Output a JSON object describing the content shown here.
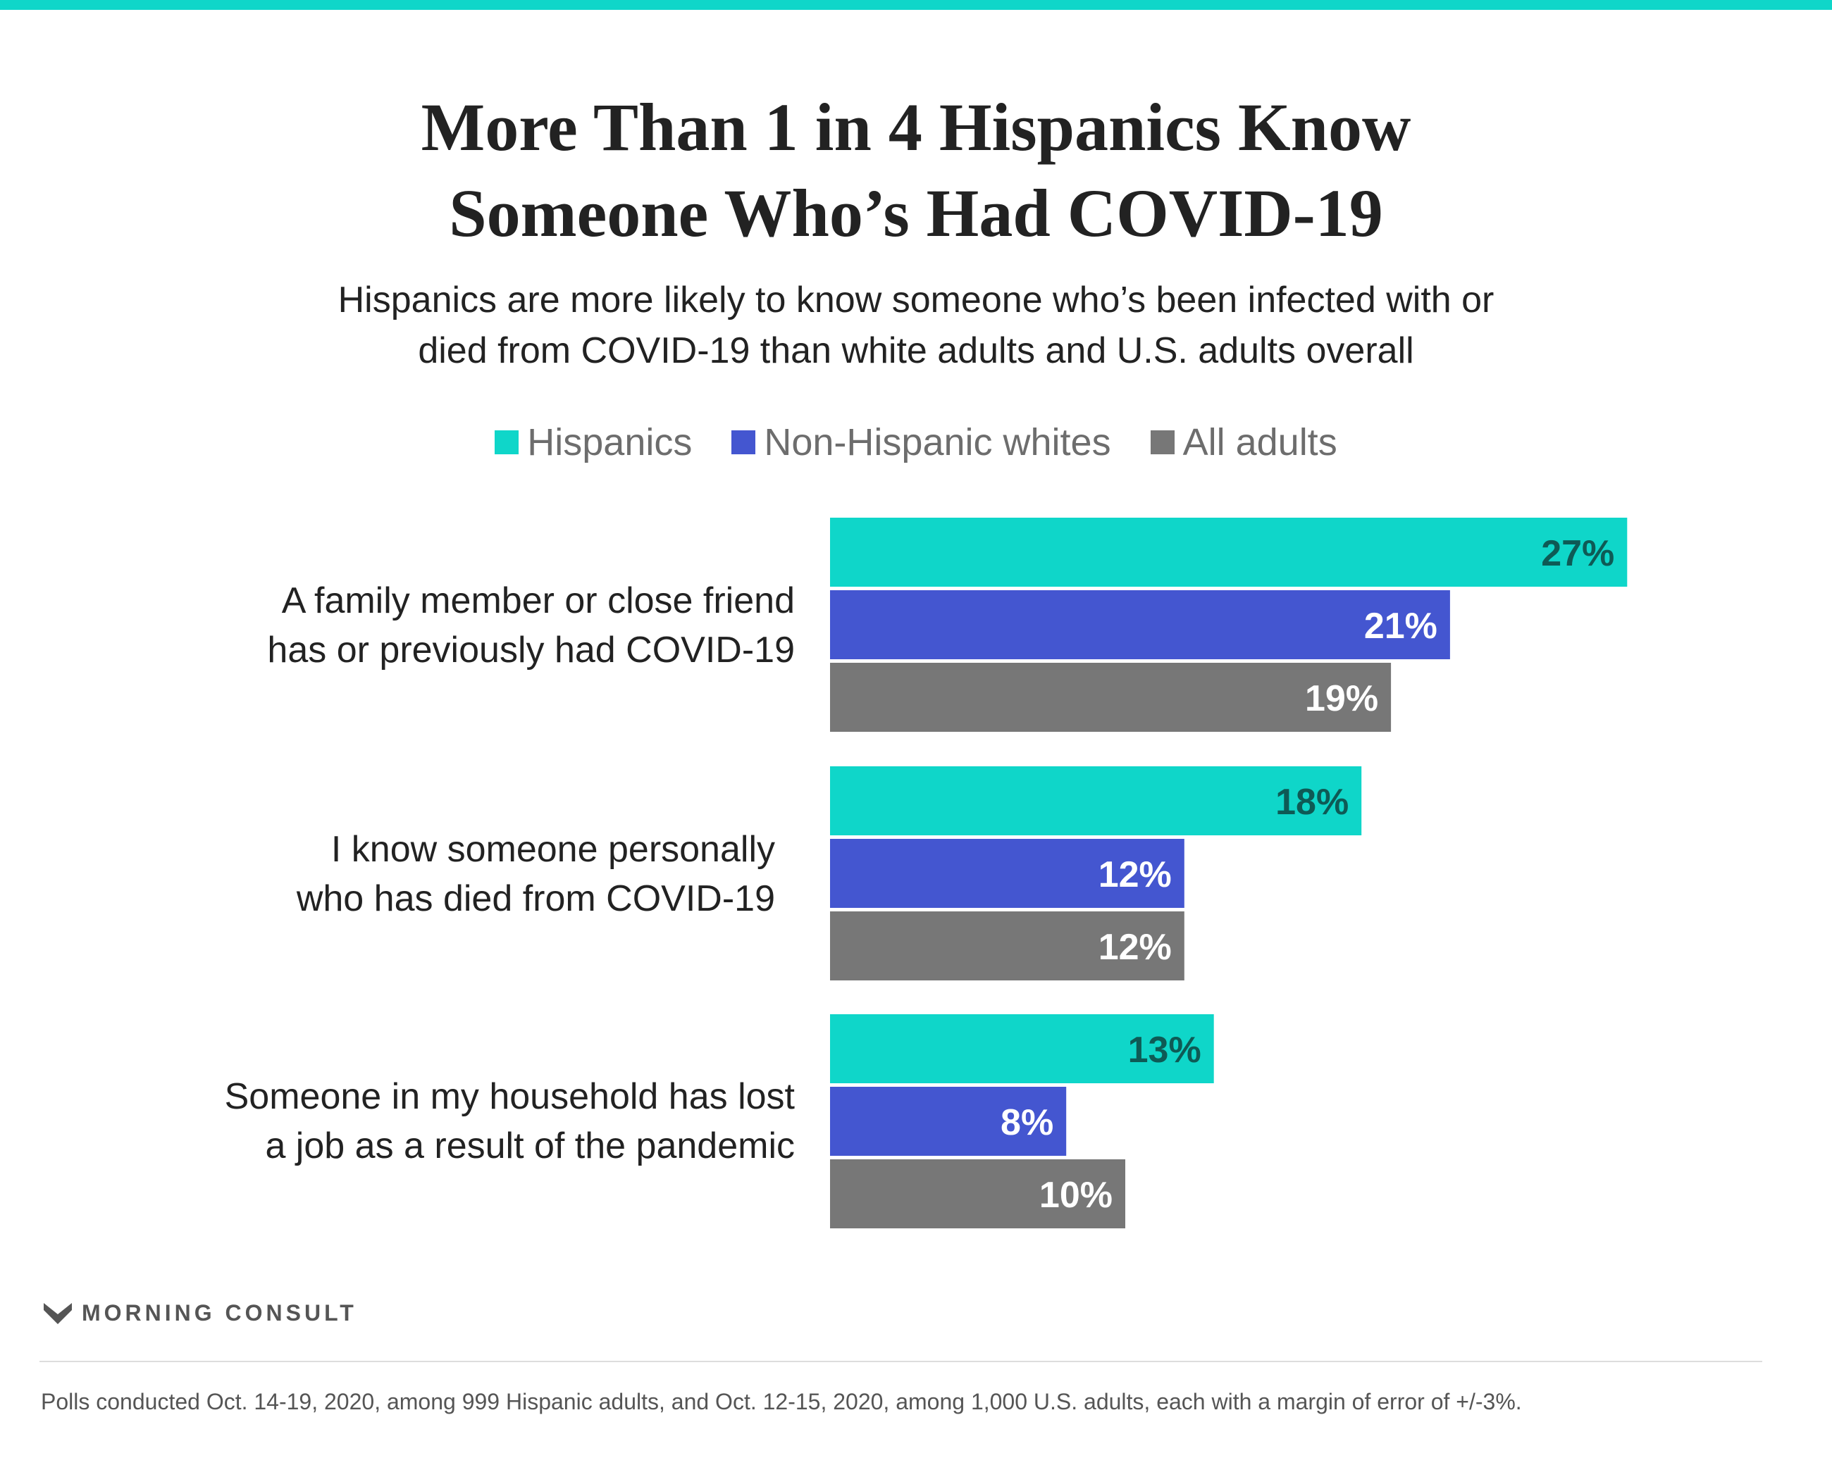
{
  "title": {
    "line1": "More Than 1 in 4 Hispanics Know",
    "line2": "Someone Who’s Had COVID-19"
  },
  "subtitle": {
    "line1": "Hispanics are more likely to know someone who’s been infected with or",
    "line2": "died from COVID-19 than white adults and U.S. adults overall"
  },
  "legend": [
    {
      "label": "Hispanics",
      "color": "#0fd6c9"
    },
    {
      "label": "Non-Hispanic whites",
      "color": "#4456d0"
    },
    {
      "label": "All adults",
      "color": "#777777"
    }
  ],
  "chart_data": {
    "type": "bar",
    "orientation": "horizontal",
    "categories": [
      [
        "A family member or close friend",
        "has or previously had COVID-19"
      ],
      [
        "I know someone personally",
        "who has died from COVID-19"
      ],
      [
        "Someone in my household has lost",
        "a job as a result of the pandemic"
      ]
    ],
    "series": [
      {
        "name": "Hispanics",
        "color": "#0fd6c9",
        "label_color": "#0e5a55",
        "values": [
          27,
          18,
          13
        ],
        "labels": [
          "27%",
          "18%",
          "13%"
        ]
      },
      {
        "name": "Non-Hispanic whites",
        "color": "#4456d0",
        "label_color": "#ffffff",
        "values": [
          21,
          12,
          8
        ],
        "labels": [
          "21%",
          "12%",
          "8%"
        ]
      },
      {
        "name": "All adults",
        "color": "#777777",
        "label_color": "#ffffff",
        "values": [
          19,
          12,
          10
        ],
        "labels": [
          "19%",
          "12%",
          "10%"
        ]
      }
    ],
    "unit": "%",
    "legend_position": "top-center",
    "grid": false
  },
  "branding": {
    "logo_text": "MORNING CONSULT"
  },
  "footnote": "Polls conducted Oct. 14-19, 2020, among 999 Hispanic adults, and Oct. 12-15, 2020, among 1,000 U.S. adults, each with a margin of error of +/-3%."
}
